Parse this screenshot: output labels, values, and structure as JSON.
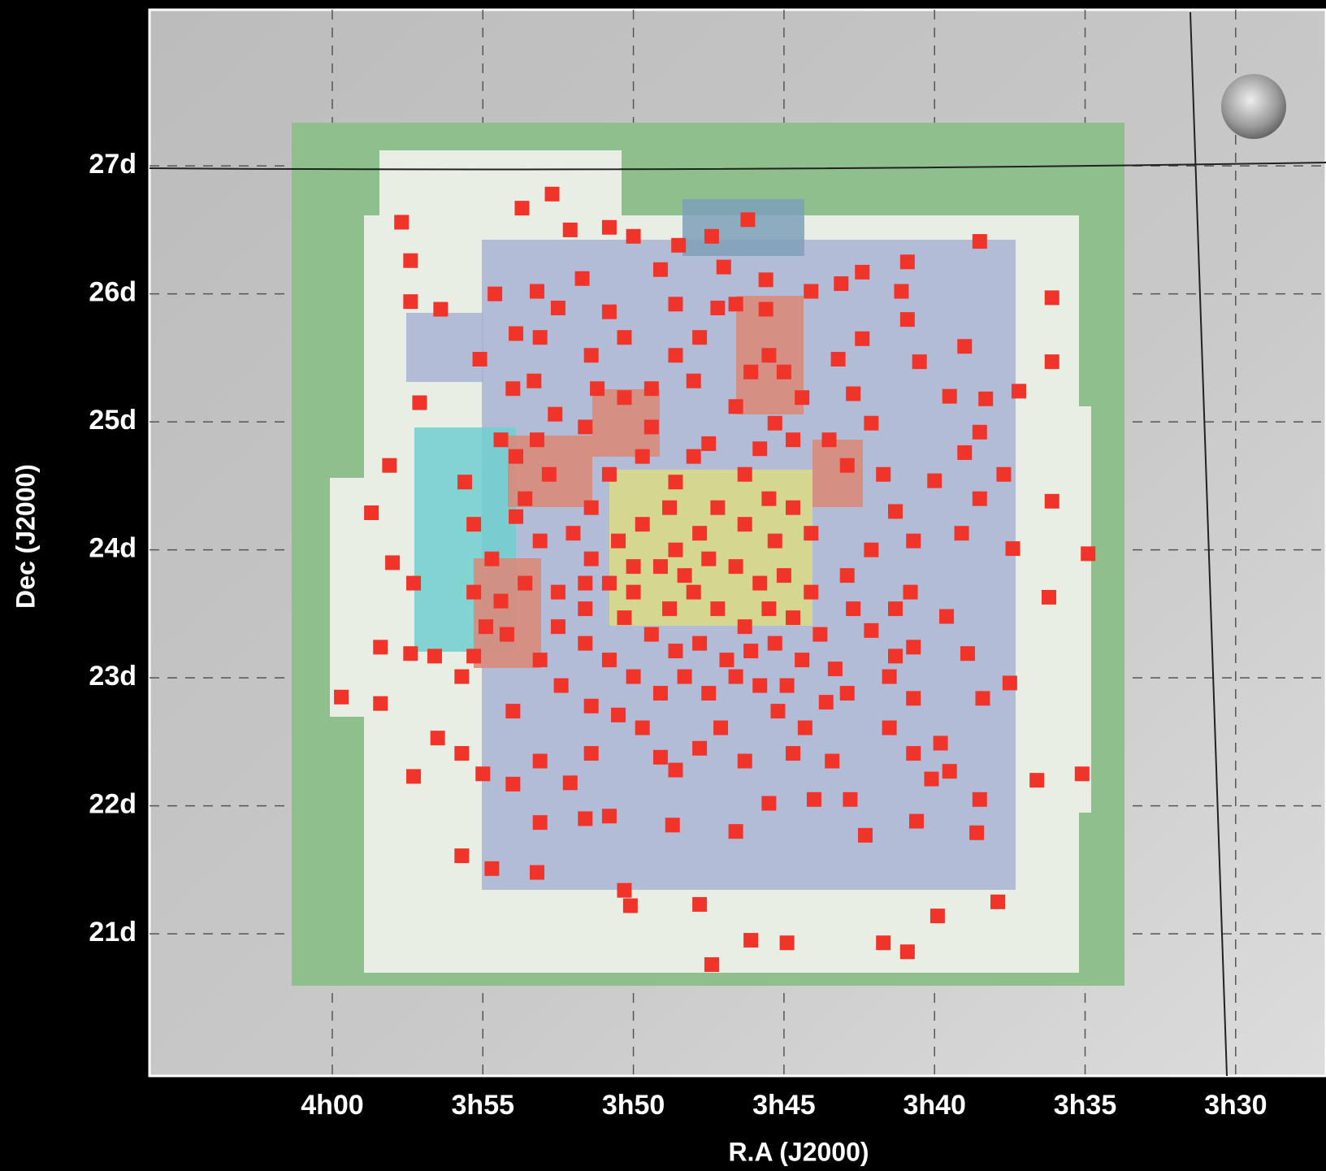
{
  "chart_data": {
    "type": "scatter",
    "x_label": "R.A (J2000)",
    "y_label": "Dec (J2000)",
    "xlim": [
      246.07,
      207.0
    ],
    "ylim": [
      19.89,
      28.22
    ],
    "xticks": [
      {
        "value": 240,
        "label": "4h00"
      },
      {
        "value": 235,
        "label": "3h55"
      },
      {
        "value": 230,
        "label": "3h50"
      },
      {
        "value": 225,
        "label": "3h45"
      },
      {
        "value": 220,
        "label": "3h40"
      },
      {
        "value": 215,
        "label": "3h35"
      },
      {
        "value": 210,
        "label": "3h30"
      }
    ],
    "yticks": [
      {
        "value": 21,
        "label": "21d"
      },
      {
        "value": 22,
        "label": "22d"
      },
      {
        "value": 23,
        "label": "23d"
      },
      {
        "value": 24,
        "label": "24d"
      },
      {
        "value": 25,
        "label": "25d"
      },
      {
        "value": 26,
        "label": "26d"
      },
      {
        "value": 27,
        "label": "27d"
      }
    ],
    "grid": true,
    "color": "#f0342a",
    "x": [
      237.7,
      237.4,
      237.4,
      236.4,
      233.7,
      232.7,
      232.1,
      230.8,
      226.2,
      218.5,
      216.1,
      216.1,
      217.2,
      216.1,
      214.9,
      216.2,
      215.1,
      216.6,
      217.9,
      219.9,
      220.9,
      221.7,
      224.9,
      226.1,
      227.4,
      227.8,
      230.1,
      230.3,
      233.2,
      234.7,
      235.7,
      239.7,
      238.4,
      238.4,
      237.4,
      236.6,
      238.7,
      238.1,
      238.0,
      237.3,
      237.1,
      237.3,
      236.5,
      235.7,
      235.0,
      234.0,
      233.1,
      231.6,
      230.8,
      228.7,
      226.6,
      225.5,
      224.0,
      222.8,
      222.3,
      220.6,
      218.6,
      218.5,
      219.5,
      220.1,
      219.8,
      220.7,
      221.5,
      218.4,
      217.5,
      218.9,
      219.6,
      217.4,
      219.1,
      220.0,
      218.5,
      217.7,
      219.0,
      218.5,
      218.3,
      219.5,
      219.0,
      220.5,
      220.9,
      221.1,
      220.9,
      222.4,
      223.1,
      224.1,
      222.4,
      223.2,
      222.7,
      222.1,
      223.5,
      222.9,
      221.7,
      221.3,
      220.7,
      222.1,
      222.9,
      222.7,
      221.3,
      220.8,
      222.1,
      221.3,
      220.7,
      221.5,
      220.7,
      222.9,
      223.6,
      224.9,
      225.2,
      224.3,
      223.4,
      224.7,
      226.3,
      227.1,
      227.8,
      228.6,
      229.1,
      229.7,
      230.5,
      231.4,
      232.1,
      233.1,
      231.4,
      232.4,
      233.1,
      234.0,
      235.3,
      235.7,
      234.9,
      234.2,
      235.3,
      234.7,
      233.6,
      234.4,
      233.1,
      233.9,
      235.3,
      235.6,
      233.6,
      232.8,
      234.4,
      233.9,
      233.2,
      234.0,
      233.3,
      232.6,
      231.6,
      231.2,
      230.3,
      229.4,
      229.7,
      230.8,
      231.4,
      232.0,
      231.4,
      230.5,
      229.7,
      228.8,
      228.6,
      228.0,
      227.5,
      226.6,
      226.1,
      225.5,
      225.0,
      224.4,
      225.3,
      225.8,
      224.7,
      226.3,
      225.5,
      224.7,
      224.1,
      225.3,
      226.3,
      227.2,
      227.8,
      228.6,
      229.1,
      228.3,
      227.5,
      226.6,
      225.8,
      225.0,
      224.1,
      224.7,
      225.5,
      226.3,
      227.2,
      228.0,
      228.8,
      230.0,
      230.3,
      229.4,
      228.6,
      227.8,
      226.9,
      226.1,
      225.3,
      224.4,
      223.8,
      223.3,
      225.8,
      226.6,
      227.5,
      228.3,
      229.1,
      230.0,
      230.8,
      231.6,
      232.5,
      231.6,
      230.8,
      230.0,
      231.6,
      232.5,
      228.6,
      229.1,
      227.4,
      228.5,
      230.0,
      231.7,
      230.8,
      230.3,
      231.4,
      233.1,
      233.9,
      234.6,
      233.2,
      235.1,
      232.5,
      227.0,
      227.2,
      226.6,
      225.6,
      225.6,
      227.8,
      228.6,
      228.0,
      229.4
    ],
    "y": [
      26.56,
      26.26,
      25.94,
      25.88,
      26.67,
      26.78,
      26.5,
      26.52,
      26.58,
      26.41,
      25.97,
      25.47,
      25.24,
      24.38,
      23.97,
      23.63,
      22.25,
      22.2,
      21.25,
      21.14,
      20.86,
      20.93,
      20.93,
      20.95,
      20.76,
      21.23,
      21.22,
      21.34,
      21.48,
      21.51,
      21.61,
      22.85,
      22.8,
      23.24,
      23.19,
      23.17,
      24.29,
      24.66,
      23.9,
      23.74,
      25.15,
      22.23,
      22.53,
      22.41,
      22.25,
      22.17,
      21.87,
      21.9,
      21.92,
      21.85,
      21.8,
      22.02,
      22.05,
      22.05,
      21.77,
      21.88,
      21.79,
      22.05,
      22.27,
      22.21,
      22.49,
      22.41,
      22.61,
      22.84,
      22.96,
      23.19,
      23.48,
      24.01,
      24.13,
      24.54,
      24.4,
      24.59,
      24.76,
      24.92,
      25.18,
      25.2,
      25.59,
      25.47,
      25.8,
      26.02,
      26.25,
      26.17,
      26.08,
      26.02,
      25.65,
      25.49,
      25.22,
      24.99,
      24.86,
      24.66,
      24.59,
      24.3,
      24.07,
      24.0,
      23.8,
      23.54,
      23.54,
      23.67,
      23.37,
      23.17,
      23.24,
      23.01,
      22.84,
      22.88,
      22.81,
      22.94,
      22.74,
      22.61,
      22.35,
      22.41,
      22.35,
      22.61,
      22.45,
      22.28,
      22.38,
      22.61,
      22.71,
      22.41,
      22.18,
      22.35,
      22.78,
      22.94,
      23.14,
      22.74,
      23.17,
      23.01,
      23.4,
      23.34,
      23.67,
      23.93,
      23.74,
      23.6,
      24.07,
      24.26,
      24.2,
      24.53,
      24.4,
      24.59,
      24.86,
      24.73,
      24.86,
      25.26,
      25.32,
      25.06,
      24.96,
      25.26,
      25.19,
      24.96,
      24.73,
      24.59,
      24.33,
      24.13,
      23.93,
      24.07,
      24.2,
      24.33,
      24.53,
      24.73,
      24.83,
      25.12,
      25.39,
      25.52,
      25.39,
      25.19,
      24.99,
      24.79,
      24.86,
      24.59,
      24.4,
      24.33,
      24.13,
      24.07,
      24.2,
      24.33,
      24.13,
      24.0,
      23.87,
      23.8,
      23.93,
      23.87,
      23.74,
      23.8,
      23.67,
      23.47,
      23.54,
      23.4,
      23.54,
      23.67,
      23.54,
      23.67,
      23.47,
      23.34,
      23.21,
      23.27,
      23.14,
      23.21,
      23.27,
      23.14,
      23.34,
      23.07,
      22.94,
      23.01,
      22.88,
      23.01,
      22.88,
      23.01,
      23.14,
      23.27,
      23.4,
      23.54,
      23.74,
      23.87,
      23.74,
      23.67,
      25.92,
      26.19,
      26.45,
      26.38,
      26.45,
      26.12,
      25.86,
      25.66,
      25.52,
      25.66,
      25.69,
      26.0,
      26.02,
      25.49,
      25.89,
      26.21,
      25.89,
      25.92,
      26.11,
      25.88,
      25.66,
      25.52,
      25.32,
      25.26
    ]
  }
}
